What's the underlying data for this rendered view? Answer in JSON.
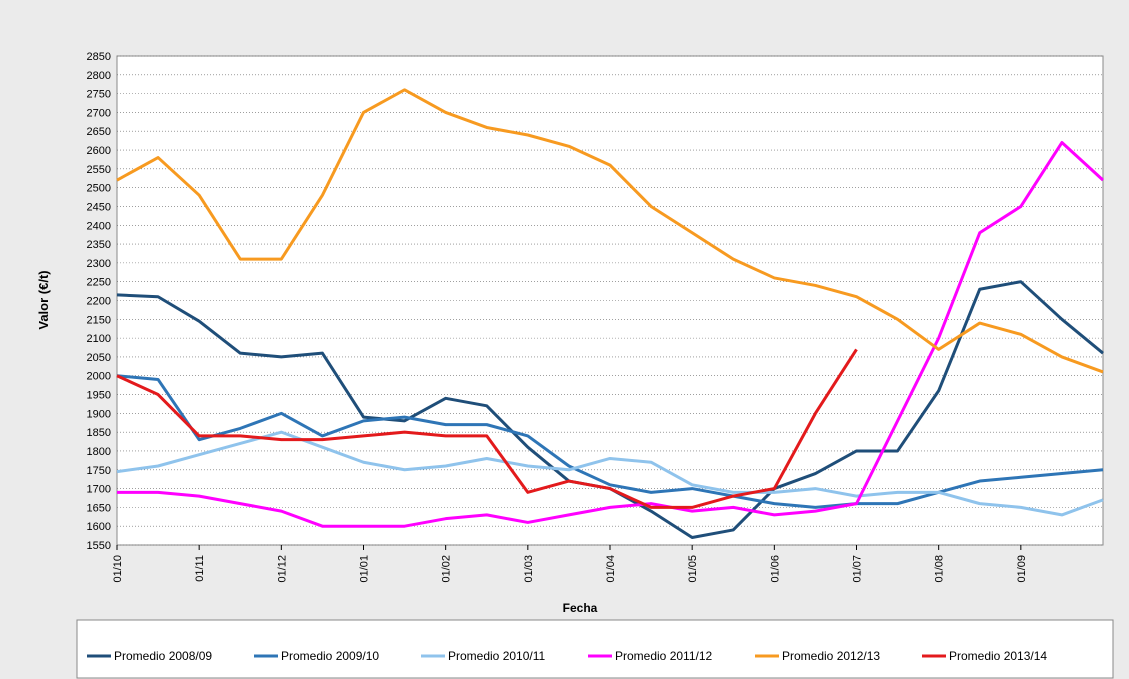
{
  "chart_data": {
    "type": "line",
    "x_label": "Fecha",
    "y_label": "Valor (€/t)",
    "categories": [
      "01/10",
      null,
      "01/11",
      null,
      "01/12",
      null,
      "01/01",
      null,
      "01/02",
      null,
      "01/03",
      null,
      "01/04",
      null,
      "01/05",
      null,
      "01/06",
      null,
      "01/07",
      null,
      "01/08",
      null,
      "01/09",
      null,
      null
    ],
    "series": [
      {
        "name": "Promedio 2008/09",
        "color": "#1f4e79",
        "values": [
          2215,
          2210,
          2145,
          2060,
          2050,
          2060,
          1890,
          1880,
          1940,
          1920,
          1810,
          1720,
          1700,
          1640,
          1570,
          1590,
          1700,
          1740,
          1800,
          1800,
          1960,
          2230,
          2250,
          2150,
          2060
        ]
      },
      {
        "name": "Promedio 2009/10",
        "color": "#2e75b6",
        "values": [
          2000,
          1990,
          1830,
          1860,
          1900,
          1840,
          1880,
          1890,
          1870,
          1870,
          1840,
          1760,
          1710,
          1690,
          1700,
          1680,
          1660,
          1650,
          1660,
          1660,
          1690,
          1720,
          1730,
          1740,
          1750
        ]
      },
      {
        "name": "Promedio 2010/11",
        "color": "#8fc3ec",
        "values": [
          1745,
          1760,
          1790,
          1820,
          1850,
          1810,
          1770,
          1750,
          1760,
          1780,
          1760,
          1750,
          1780,
          1770,
          1710,
          1690,
          1690,
          1700,
          1680,
          1690,
          1690,
          1660,
          1650,
          1630,
          1670
        ]
      },
      {
        "name": "Promedio 2011/12",
        "color": "#ff00ff",
        "values": [
          1690,
          1690,
          1680,
          1660,
          1640,
          1600,
          1600,
          1600,
          1620,
          1630,
          1610,
          1630,
          1650,
          1660,
          1640,
          1650,
          1630,
          1640,
          1660,
          1880,
          2100,
          2380,
          2450,
          2620,
          2520
        ]
      },
      {
        "name": "Promedio 2012/13",
        "color": "#f79a20",
        "values": [
          2520,
          2580,
          2480,
          2310,
          2310,
          2480,
          2700,
          2760,
          2700,
          2660,
          2640,
          2610,
          2560,
          2450,
          2380,
          2310,
          2260,
          2240,
          2210,
          2150,
          2070,
          2140,
          2110,
          2050,
          2010
        ]
      },
      {
        "name": "Promedio 2013/14",
        "color": "#e31a1c",
        "values": [
          2000,
          1950,
          1840,
          1840,
          1830,
          1830,
          1840,
          1850,
          1840,
          1840,
          1690,
          1720,
          1700,
          1650,
          1650,
          1680,
          1700,
          1900,
          2070,
          null,
          null,
          null,
          null,
          null,
          null
        ]
      }
    ],
    "ylim": [
      1550,
      2850
    ],
    "yticks": [
      1550,
      1600,
      1650,
      1700,
      1750,
      1800,
      1850,
      1900,
      1950,
      2000,
      2050,
      2100,
      2150,
      2200,
      2250,
      2300,
      2350,
      2400,
      2450,
      2500,
      2550,
      2600,
      2650,
      2700,
      2750,
      2800,
      2850
    ],
    "grid": true,
    "legend": "bottom"
  }
}
